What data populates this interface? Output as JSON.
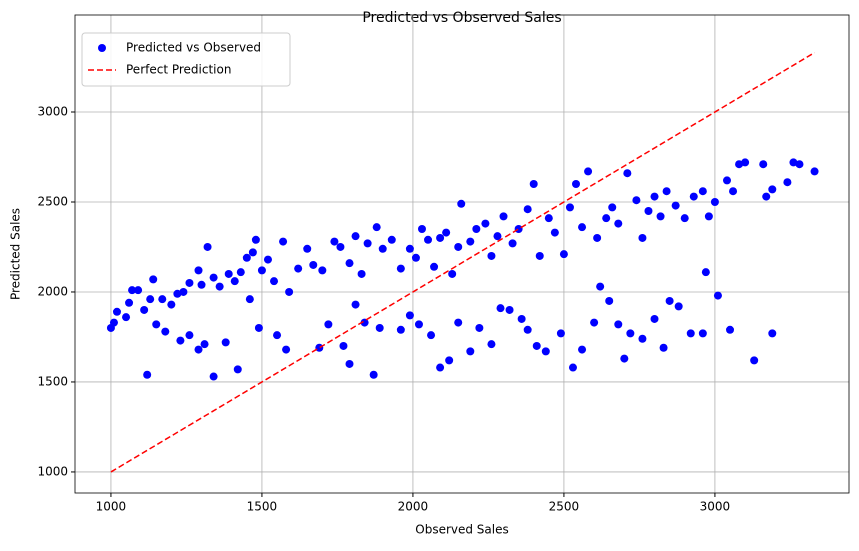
{
  "chart_data": {
    "type": "scatter",
    "title": "Predicted vs Observed Sales",
    "x_label": "Observed Sales",
    "y_label": "Predicted Sales",
    "xlim": [
      881,
      3444
    ],
    "ylim": [
      883,
      3539
    ],
    "xticks": [
      1000,
      1500,
      2000,
      2500,
      3000
    ],
    "yticks": [
      1000,
      1500,
      2000,
      2500,
      3000
    ],
    "grid": true,
    "legend": "upper left",
    "series": [
      {
        "name": "Predicted vs Observed",
        "color": "#0000ff",
        "kind": "scatter",
        "x": [
          1000,
          1010,
          1020,
          1050,
          1060,
          1070,
          1090,
          1110,
          1130,
          1140,
          1170,
          1200,
          1220,
          1240,
          1260,
          1290,
          1300,
          1320,
          1340,
          1360,
          1390,
          1410,
          1430,
          1450,
          1470,
          1480,
          1500,
          1520,
          1540,
          1570,
          1590,
          1620,
          1650,
          1670,
          1700,
          1740,
          1760,
          1790,
          1810,
          1830,
          1850,
          1880,
          1900,
          1930,
          1960,
          1990,
          2010,
          2030,
          2050,
          2070,
          2090,
          2110,
          2130,
          2150,
          2160,
          2190,
          2210,
          2240,
          2260,
          2280,
          2300,
          2330,
          2350,
          2380,
          2400,
          2420,
          2450,
          2470,
          2500,
          2520,
          2540,
          2560,
          2580,
          2610,
          2640,
          2660,
          2680,
          2710,
          2740,
          2760,
          2780,
          2800,
          2820,
          2840,
          2870,
          2900,
          2930,
          2960,
          2980,
          3000,
          3040,
          3060,
          3080,
          3100,
          3160,
          3170,
          3190,
          3240,
          3260,
          3280,
          3330,
          1120,
          1150,
          1180,
          1230,
          1260,
          1290,
          1310,
          1340,
          1380,
          1420,
          1460,
          1490,
          1550,
          1580,
          1690,
          1720,
          1770,
          1790,
          1810,
          1840,
          1870,
          1890,
          1960,
          1990,
          2020,
          2060,
          2090,
          2120,
          2150,
          2190,
          2220,
          2260,
          2290,
          2320,
          2360,
          2380,
          2410,
          2440,
          2490,
          2530,
          2560,
          2600,
          2620,
          2650,
          2680,
          2700,
          2720,
          2760,
          2800,
          2830,
          2850,
          2880,
          2920,
          2960,
          2970,
          3010,
          3050,
          3130,
          3190
        ],
        "y": [
          1800,
          1830,
          1890,
          1860,
          1940,
          2010,
          2010,
          1900,
          1960,
          2070,
          1960,
          1930,
          1990,
          2000,
          2050,
          2120,
          2040,
          2250,
          2080,
          2030,
          2100,
          2060,
          2110,
          2190,
          2220,
          2290,
          2120,
          2180,
          2060,
          2280,
          2000,
          2130,
          2240,
          2150,
          2120,
          2280,
          2250,
          2160,
          2310,
          2100,
          2270,
          2360,
          2240,
          2290,
          2130,
          2240,
          2190,
          2350,
          2290,
          2140,
          2300,
          2330,
          2100,
          2250,
          2490,
          2280,
          2350,
          2380,
          2200,
          2310,
          2420,
          2270,
          2350,
          2460,
          2600,
          2200,
          2410,
          2330,
          2210,
          2470,
          2600,
          2360,
          2670,
          2300,
          2410,
          2470,
          2380,
          2660,
          2510,
          2300,
          2450,
          2530,
          2420,
          2560,
          2480,
          2410,
          2530,
          2560,
          2420,
          2500,
          2620,
          2560,
          2710,
          2720,
          2710,
          2530,
          2570,
          2610,
          2720,
          2710,
          2670,
          1540,
          1820,
          1780,
          1730,
          1760,
          1680,
          1710,
          1530,
          1720,
          1570,
          1960,
          1800,
          1760,
          1680,
          1690,
          1820,
          1700,
          1600,
          1930,
          1830,
          1540,
          1800,
          1790,
          1870,
          1820,
          1760,
          1580,
          1620,
          1830,
          1670,
          1800,
          1710,
          1910,
          1900,
          1850,
          1790,
          1700,
          1670,
          1770,
          1580,
          1680,
          1830,
          2030,
          1950,
          1820,
          1630,
          1770,
          1740,
          1850,
          1690,
          1950,
          1920,
          1770,
          1770,
          2110,
          1980,
          1790,
          1620,
          1770
        ]
      },
      {
        "name": "Perfect Prediction",
        "color": "#ff0000",
        "kind": "dashed-line",
        "x": [
          1000,
          3330
        ],
        "y": [
          1000,
          3330
        ]
      }
    ]
  }
}
